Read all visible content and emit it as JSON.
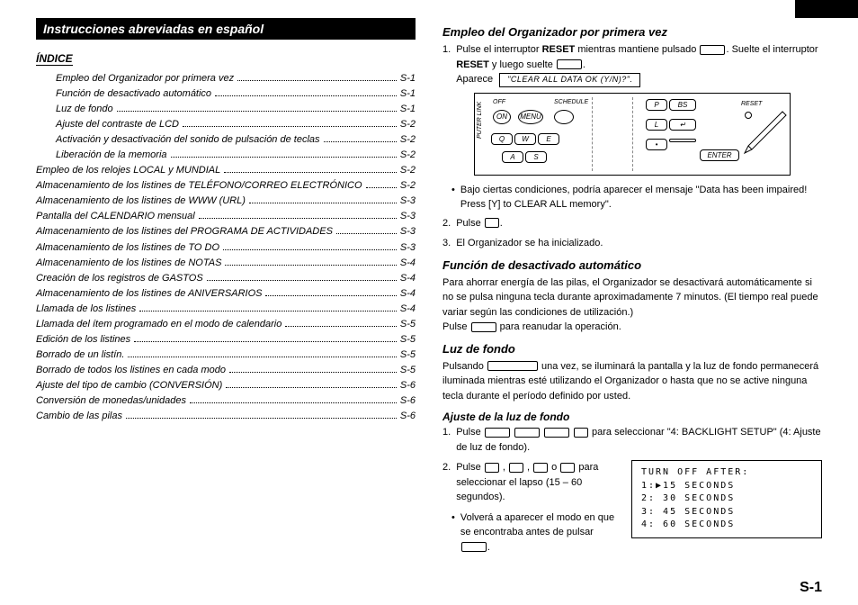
{
  "banner": "Instrucciones abreviadas en español",
  "indice_label": "ÍNDICE",
  "toc": [
    {
      "label": "Empleo del Organizador por primera vez",
      "page": "S-1",
      "indent": true
    },
    {
      "label": "Función de desactivado automático",
      "page": "S-1",
      "indent": true
    },
    {
      "label": "Luz de fondo",
      "page": "S-1",
      "indent": true
    },
    {
      "label": "Ajuste del contraste de LCD",
      "page": "S-2",
      "indent": true
    },
    {
      "label": "Activación y desactivación del sonido de pulsación de teclas",
      "page": "S-2",
      "indent": true
    },
    {
      "label": "Liberación de la memoria",
      "page": "S-2",
      "indent": true
    },
    {
      "label": "Empleo de los relojes LOCAL y MUNDIAL",
      "page": "S-2",
      "indent": false
    },
    {
      "label": "Almacenamiento de los listines de TELÉFONO/CORREO ELECTRÓNICO",
      "page": "S-2",
      "indent": false
    },
    {
      "label": "Almacenamiento de los listines de WWW (URL)",
      "page": "S-3",
      "indent": false
    },
    {
      "label": "Pantalla del CALENDARIO mensual",
      "page": "S-3",
      "indent": false
    },
    {
      "label": "Almacenamiento de los listines del PROGRAMA DE ACTIVIDADES",
      "page": "S-3",
      "indent": false
    },
    {
      "label": "Almacenamiento de los listines de TO DO",
      "page": "S-3",
      "indent": false
    },
    {
      "label": "Almacenamiento de los listines de NOTAS",
      "page": "S-4",
      "indent": false
    },
    {
      "label": "Creación de los registros de GASTOS",
      "page": "S-4",
      "indent": false
    },
    {
      "label": "Almacenamiento de los listines de ANIVERSARIOS",
      "page": "S-4",
      "indent": false
    },
    {
      "label": "Llamada de los listines",
      "page": "S-4",
      "indent": false
    },
    {
      "label": "Llamada del ítem programado en el modo de calendario",
      "page": "S-5",
      "indent": false
    },
    {
      "label": "Edición de los listines",
      "page": "S-5",
      "indent": false
    },
    {
      "label": "Borrado de un listín.",
      "page": "S-5",
      "indent": false
    },
    {
      "label": "Borrado de todos los listines en cada modo",
      "page": "S-5",
      "indent": false
    },
    {
      "label": "Ajuste del tipo de cambio (CONVERSIÓN)",
      "page": "S-6",
      "indent": false
    },
    {
      "label": "Conversión de monedas/unidades",
      "page": "S-6",
      "indent": false
    },
    {
      "label": "Cambio de las pilas",
      "page": "S-6",
      "indent": false
    }
  ],
  "sec1_head": "Empleo del Organizador por primera vez",
  "sec1_step1_a": "Pulse el interruptor ",
  "sec1_step1_b": " mientras mantiene pulsado ",
  "sec1_step1_c": ". Suelte el interruptor ",
  "sec1_step1_d": " y luego suelte ",
  "reset": "RESET",
  "sec1_appear_a": "Aparece ",
  "sec1_appear_b": "\"CLEAR ALL DATA  OK (Y/N)?\".",
  "device": {
    "off": "OFF",
    "on": "ON",
    "menu": "MENU",
    "schedule": "SCHEDULE",
    "q": "Q",
    "w": "W",
    "e": "E",
    "a": "A",
    "s": "S",
    "p": "P",
    "bs": "BS",
    "l": "L",
    "ret": "↵",
    "dot": "•",
    "enter": "ENTER",
    "reset_lbl": "RESET",
    "link": "PUTER LINK"
  },
  "sec1_bullet": "Bajo ciertas condiciones, podría aparecer el mensaje \"Data has been impaired! Press [Y] to CLEAR ALL memory\".",
  "sec1_step2": "Pulse ",
  "sec1_step3": "El Organizador se ha inicializado.",
  "sec2_head": "Función de desactivado automático",
  "sec2_body": "Para ahorrar energía de las pilas, el Organizador se desactivará automáticamente si no se pulsa ninguna tecla durante aproximadamente 7 minutos. (El tiempo real puede variar según las condiciones de utilización.)",
  "sec2_tail_a": "Pulse ",
  "sec2_tail_b": " para reanudar la operación.",
  "sec3_head": "Luz de fondo",
  "sec3_body_a": "Pulsando ",
  "sec3_body_b": " una vez, se iluminará la pantalla y la luz de fondo permanecerá iluminada mientras esté utilizando el Organizador o hasta que no se active ninguna tecla durante el período definido por usted.",
  "sub_head": "Ajuste de la luz de fondo",
  "adj_step1_a": "Pulse ",
  "adj_step1_b": " para seleccionar \"4: BACKLIGHT SETUP\" (4: Ajuste de luz de fondo).",
  "adj_step2_a": "Pulse ",
  "adj_step2_b": " para seleccionar el lapso (15 – 60 segundos).",
  "adj_bullet_a": "Volverá a aparecer el modo en que se encontraba antes de pulsar ",
  "screen": {
    "l1": "TURN OFF AFTER:",
    "l2": "1:▶15 SECONDS",
    "l3": "2: 30 SECONDS",
    "l4": "3: 45 SECONDS",
    "l5": "4: 60 SECONDS"
  },
  "pagenum": "S-1"
}
